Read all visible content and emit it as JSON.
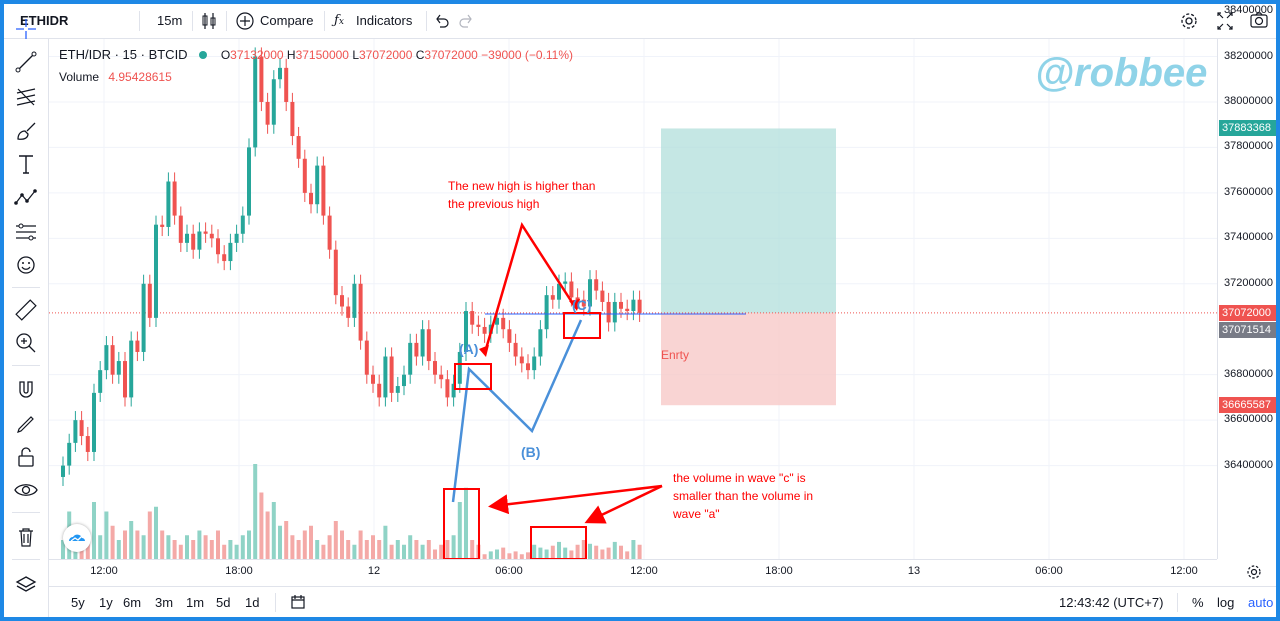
{
  "toolbar": {
    "symbol": "ETHIDR",
    "interval": "15m",
    "compare_label": "Compare",
    "indicators_label": "Indicators"
  },
  "legend": {
    "pair": "ETH/IDR · 15 · BTCID",
    "o_label": "O",
    "o_value": "37132000",
    "h_label": "H",
    "h_value": "37150000",
    "l_label": "L",
    "l_value": "37072000",
    "c_label": "C",
    "c_value": "37072000",
    "change": "−39000 (−0.11%)",
    "volume_label": "Volume",
    "volume_value": "4.95428615"
  },
  "watermark": "@robbee",
  "price_axis": {
    "ticks": [
      "38400000",
      "38200000",
      "38000000",
      "37800000",
      "37600000",
      "37400000",
      "37200000",
      "36800000",
      "36600000",
      "36400000"
    ],
    "tick_values": [
      38400000,
      38200000,
      38000000,
      37800000,
      37600000,
      37400000,
      37200000,
      36800000,
      36600000,
      36400000
    ],
    "tp_label": "37883368",
    "last_label": "37072000",
    "entry_label": "37071514",
    "sl_label": "36665587"
  },
  "time_axis": [
    "12:00",
    "18:00",
    "12",
    "06:00",
    "12:00",
    "18:00",
    "13",
    "06:00",
    "12:00"
  ],
  "annotations": {
    "new_high_line1": "The new high is higher than",
    "new_high_line2": "the previous high",
    "wave_a": "(A)",
    "wave_b": "(B)",
    "wave_c": "(C)",
    "entry": "Enrty",
    "volume_line1": "the volume in wave \"c\" is",
    "volume_line2": "smaller than the volume in",
    "volume_line3": "wave \"a\""
  },
  "bottom": {
    "ranges": [
      "5y",
      "1y",
      "6m",
      "3m",
      "1m",
      "5d",
      "1d"
    ],
    "clock": "12:43:42 (UTC+7)",
    "percent": "%",
    "log": "log",
    "auto": "auto"
  },
  "colors": {
    "up": "#26a69a",
    "down": "#ef5350",
    "accent": "#2962ff",
    "annotation": "#ff0000",
    "wave_line": "#4a90d9"
  }
}
